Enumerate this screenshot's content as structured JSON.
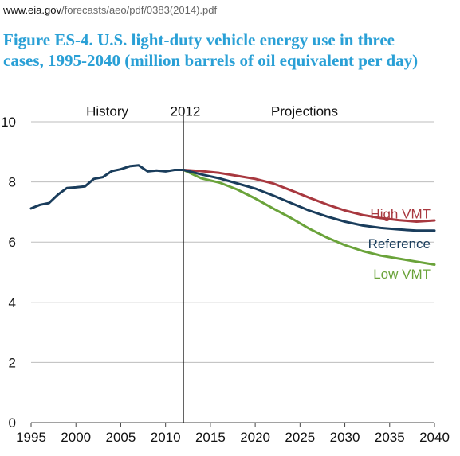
{
  "browser": {
    "url_host": "www.eia.gov",
    "url_path": "/forecasts/aeo/pdf/0383(2014).pdf"
  },
  "figure": {
    "title": "Figure ES-4. U.S. light-duty vehicle energy use in three cases, 1995-2040 (million barrels of oil equivalent per day)"
  },
  "chart_data": {
    "type": "line",
    "title": "Figure ES-4. U.S. light-duty vehicle energy use in three cases, 1995-2040 (million barrels of oil equivalent per day)",
    "xlabel": "",
    "ylabel": "",
    "xlim": [
      1995,
      2040
    ],
    "ylim": [
      0,
      10
    ],
    "x_ticks": [
      1995,
      2000,
      2005,
      2010,
      2015,
      2020,
      2025,
      2030,
      2035,
      2040
    ],
    "y_ticks": [
      0,
      2,
      4,
      6,
      8,
      10
    ],
    "grid": "horizontal",
    "legend": "inline labels at right",
    "annotations": [
      {
        "text": "History",
        "x": 2003.5,
        "y": 10.25
      },
      {
        "text": "2012",
        "x": 2012.2,
        "y": 10.25
      },
      {
        "text": "Projections",
        "x": 2025.5,
        "y": 10.25
      }
    ],
    "vline": {
      "x": 2012,
      "label": "2012"
    },
    "history": {
      "color": "#1a3d5c",
      "x": [
        1995,
        1996,
        1997,
        1998,
        1999,
        2000,
        2001,
        2002,
        2003,
        2004,
        2005,
        2006,
        2007,
        2008,
        2009,
        2010,
        2011,
        2012
      ],
      "values": [
        7.12,
        7.24,
        7.3,
        7.58,
        7.8,
        7.82,
        7.85,
        8.1,
        8.16,
        8.36,
        8.42,
        8.52,
        8.55,
        8.35,
        8.38,
        8.35,
        8.4,
        8.4
      ]
    },
    "series": [
      {
        "name": "High VMT",
        "color": "#a8383f",
        "x": [
          2012,
          2014,
          2016,
          2018,
          2020,
          2022,
          2024,
          2026,
          2028,
          2030,
          2032,
          2034,
          2036,
          2038,
          2040
        ],
        "values": [
          8.4,
          8.36,
          8.3,
          8.2,
          8.1,
          7.95,
          7.72,
          7.48,
          7.25,
          7.05,
          6.9,
          6.8,
          6.73,
          6.68,
          6.72
        ]
      },
      {
        "name": "Reference",
        "color": "#1a3d5c",
        "x": [
          2012,
          2014,
          2016,
          2018,
          2020,
          2022,
          2024,
          2026,
          2028,
          2030,
          2032,
          2034,
          2036,
          2038,
          2040
        ],
        "values": [
          8.4,
          8.25,
          8.12,
          7.95,
          7.78,
          7.55,
          7.3,
          7.05,
          6.85,
          6.68,
          6.55,
          6.47,
          6.42,
          6.38,
          6.38
        ]
      },
      {
        "name": "Low VMT",
        "color": "#6aa33a",
        "x": [
          2012,
          2014,
          2016,
          2018,
          2020,
          2022,
          2024,
          2026,
          2028,
          2030,
          2032,
          2034,
          2036,
          2038,
          2040
        ],
        "values": [
          8.4,
          8.12,
          7.98,
          7.75,
          7.45,
          7.12,
          6.8,
          6.45,
          6.15,
          5.9,
          5.7,
          5.55,
          5.45,
          5.35,
          5.25
        ]
      }
    ]
  }
}
